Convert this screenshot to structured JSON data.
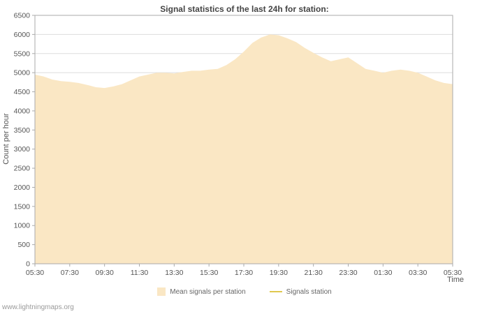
{
  "title": "Signal statistics of the last 24h for station:",
  "watermark": "www.lightningmaps.org",
  "colors": {
    "background": "#ffffff",
    "grid": "#dddddd",
    "axis": "#aaaaaa",
    "text": "#555555",
    "title": "#444444",
    "area": "#fae7c4",
    "line": "#e0c84f"
  },
  "chart_data": {
    "type": "area",
    "title": "Signal statistics of the last 24h for station:",
    "xlabel": "Time",
    "ylabel": "Count per hour",
    "ylim": [
      0,
      6500
    ],
    "y_ticks": [
      0,
      500,
      1000,
      1500,
      2000,
      2500,
      3000,
      3500,
      4000,
      4500,
      5000,
      5500,
      6000,
      6500
    ],
    "x_tick_labels": [
      "05:30",
      "07:30",
      "09:30",
      "11:30",
      "13:30",
      "15:30",
      "17:30",
      "19:30",
      "21:30",
      "23:30",
      "01:30",
      "03:30",
      "05:30"
    ],
    "grid": "horizontal",
    "legend_position": "bottom",
    "x": [
      "05:30",
      "06:00",
      "06:30",
      "07:00",
      "07:30",
      "08:00",
      "08:30",
      "09:00",
      "09:30",
      "10:00",
      "10:30",
      "11:00",
      "11:30",
      "12:00",
      "12:30",
      "13:00",
      "13:30",
      "14:00",
      "14:30",
      "15:00",
      "15:30",
      "16:00",
      "16:30",
      "17:00",
      "17:30",
      "18:00",
      "18:30",
      "19:00",
      "19:30",
      "20:00",
      "20:30",
      "21:00",
      "21:30",
      "22:00",
      "22:30",
      "23:00",
      "23:30",
      "00:00",
      "00:30",
      "01:00",
      "01:30",
      "02:00",
      "02:30",
      "03:00",
      "03:30",
      "04:00",
      "04:30",
      "05:00",
      "05:30"
    ],
    "series": [
      {
        "name": "Mean signals per station",
        "type": "area",
        "color": "#fae7c4",
        "values": [
          4950,
          4900,
          4820,
          4780,
          4760,
          4730,
          4680,
          4620,
          4600,
          4640,
          4700,
          4800,
          4900,
          4950,
          5000,
          5000,
          4980,
          5020,
          5050,
          5050,
          5080,
          5100,
          5200,
          5350,
          5550,
          5780,
          5920,
          6000,
          5980,
          5900,
          5800,
          5650,
          5520,
          5400,
          5300,
          5350,
          5400,
          5250,
          5100,
          5050,
          5000,
          5050,
          5080,
          5050,
          5000,
          4900,
          4800,
          4730,
          4700
        ]
      },
      {
        "name": "Signals station",
        "type": "line",
        "color": "#e0c84f",
        "values": []
      }
    ]
  }
}
